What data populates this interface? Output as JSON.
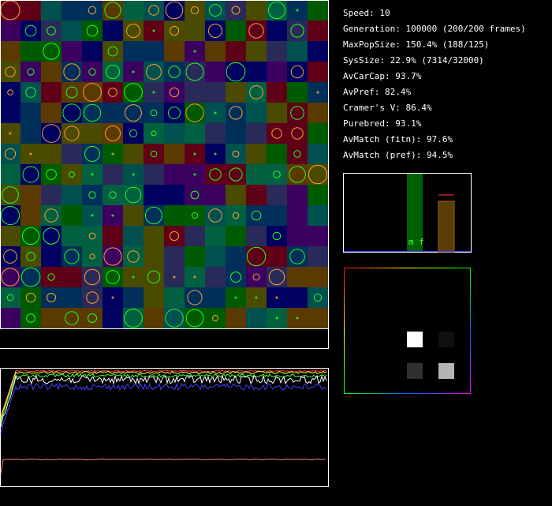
{
  "stats": [
    "Speed: 10",
    "Generation: 100000 (200/200 frames)",
    "MaxPopSize: 150.4% (188/125)",
    "SysSize: 22.9% (7314/32000)",
    "AvCarCap: 93.7%",
    "AvPref: 82.4%",
    "Cramer's V: 86.4%",
    "Purebred: 93.1%",
    "AvMatch (fitn): 97.6%",
    "AvMatch (pref): 94.5%"
  ],
  "histogram": {
    "label": "m f"
  }
}
